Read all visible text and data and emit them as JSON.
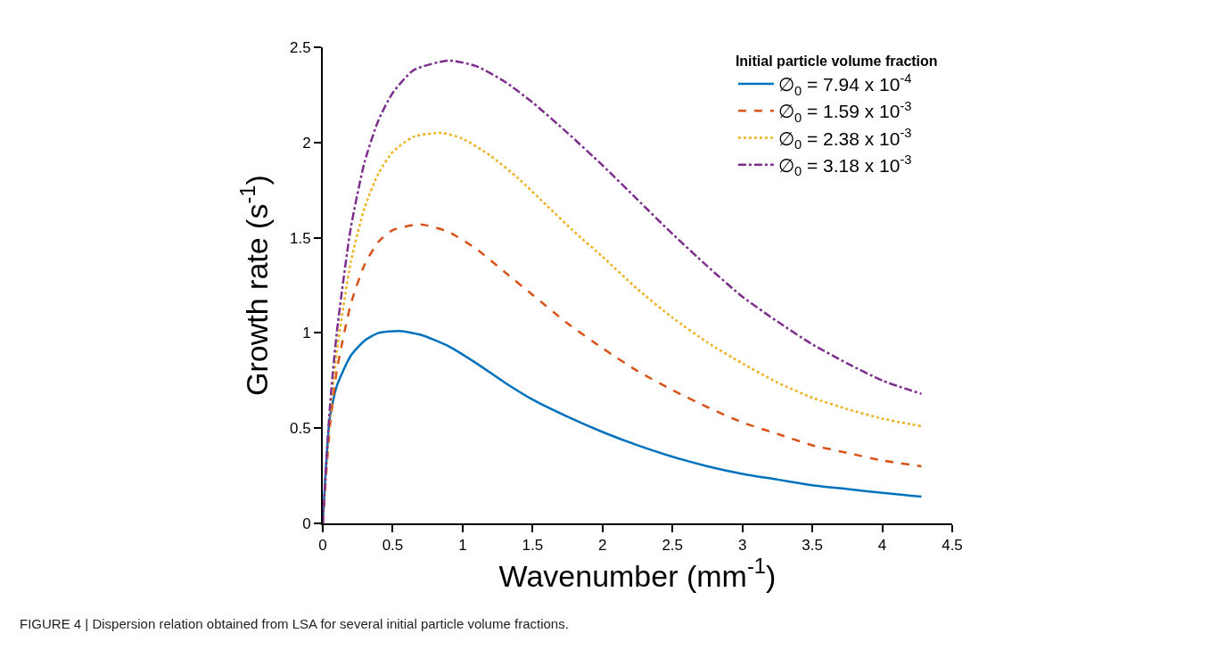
{
  "chart_data": {
    "type": "line",
    "xlabel": "Wavenumber (mm$^{-1}$)",
    "ylabel": "Growth rate (s$^{-1}$)",
    "legend_title": "Initial particle volume fraction",
    "legend": "top right",
    "xlim": [
      0,
      4.5
    ],
    "xticks": [
      0,
      0.5,
      1,
      1.5,
      2,
      2.5,
      3,
      3.5,
      4,
      4.5
    ],
    "ylim": [
      0,
      2.5
    ],
    "yticks": [
      0,
      0.5,
      1,
      1.5,
      2,
      2.5
    ],
    "annotations": [
      "FIGURE 4 | Dispersion relation obtained from LSA for several initial particle volume fractions."
    ],
    "series": [
      {
        "name": "∅$_{0}$ = 7.94 x 10$^{-4}$",
        "color": "#0072bd",
        "line_style": "solid",
        "x": [
          0,
          0.05,
          0.1,
          0.2,
          0.3,
          0.4,
          0.55,
          0.7,
          0.9,
          1.1,
          1.3,
          1.5,
          1.75,
          2.0,
          2.25,
          2.5,
          2.75,
          3.0,
          3.25,
          3.5,
          3.75,
          4.0,
          4.28
        ],
        "values": [
          0,
          0.55,
          0.72,
          0.88,
          0.96,
          1.0,
          1.01,
          0.99,
          0.93,
          0.84,
          0.74,
          0.65,
          0.56,
          0.48,
          0.41,
          0.35,
          0.3,
          0.26,
          0.23,
          0.2,
          0.18,
          0.16,
          0.14
        ]
      },
      {
        "name": "∅$_{0}$ = 1.59 x 10$^{-3}$",
        "color": "#d95319",
        "line_style": "dashed",
        "x": [
          0,
          0.05,
          0.1,
          0.2,
          0.3,
          0.4,
          0.5,
          0.7,
          0.9,
          1.1,
          1.3,
          1.5,
          1.75,
          2.0,
          2.25,
          2.5,
          2.75,
          3.0,
          3.25,
          3.5,
          3.75,
          4.0,
          4.28
        ],
        "values": [
          0,
          0.5,
          0.8,
          1.15,
          1.36,
          1.48,
          1.54,
          1.57,
          1.53,
          1.44,
          1.32,
          1.2,
          1.05,
          0.92,
          0.8,
          0.7,
          0.61,
          0.53,
          0.47,
          0.41,
          0.37,
          0.33,
          0.3
        ]
      },
      {
        "name": "∅$_{0}$ = 2.38 x 10$^{-3}$",
        "color": "#edb120",
        "line_style": "dotted",
        "x": [
          0,
          0.05,
          0.1,
          0.2,
          0.3,
          0.4,
          0.5,
          0.65,
          0.85,
          1.0,
          1.2,
          1.4,
          1.6,
          1.8,
          2.0,
          2.25,
          2.5,
          2.75,
          3.0,
          3.25,
          3.5,
          3.75,
          4.0,
          4.28
        ],
        "values": [
          0,
          0.55,
          0.9,
          1.37,
          1.66,
          1.84,
          1.95,
          2.03,
          2.05,
          2.02,
          1.93,
          1.81,
          1.67,
          1.53,
          1.4,
          1.23,
          1.08,
          0.95,
          0.84,
          0.74,
          0.66,
          0.6,
          0.55,
          0.51
        ]
      },
      {
        "name": "∅$_{0}$ = 3.18 x 10$^{-3}$",
        "color": "#7e2f8e",
        "line_style": "dashdot",
        "x": [
          0,
          0.05,
          0.1,
          0.2,
          0.3,
          0.4,
          0.5,
          0.65,
          0.9,
          1.1,
          1.3,
          1.5,
          1.75,
          2.0,
          2.25,
          2.5,
          2.75,
          3.0,
          3.25,
          3.5,
          3.75,
          4.0,
          4.28
        ],
        "values": [
          0,
          0.6,
          1.0,
          1.55,
          1.9,
          2.12,
          2.26,
          2.38,
          2.43,
          2.4,
          2.32,
          2.21,
          2.05,
          1.88,
          1.7,
          1.52,
          1.35,
          1.19,
          1.06,
          0.94,
          0.84,
          0.75,
          0.68
        ]
      }
    ]
  }
}
